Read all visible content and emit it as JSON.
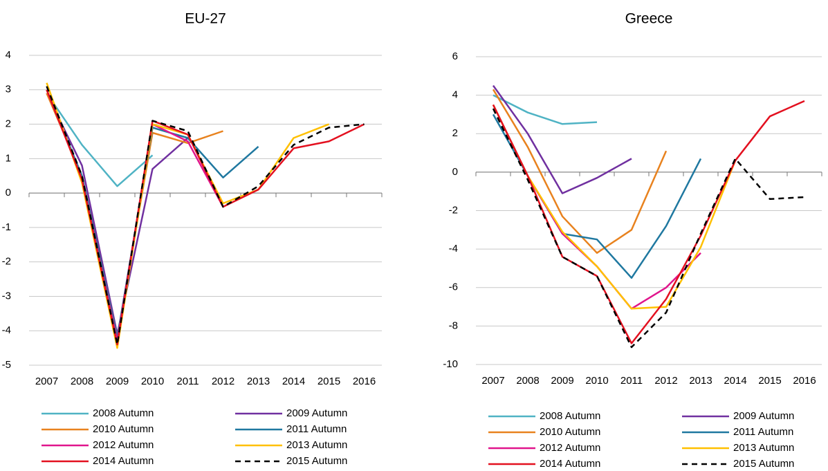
{
  "chart_data": [
    {
      "type": "line",
      "title": "EU-27",
      "categories": [
        "2007",
        "2008",
        "2009",
        "2010",
        "2011",
        "2012",
        "2013",
        "2014",
        "2015",
        "2016"
      ],
      "ylim": [
        -5,
        4
      ],
      "yticks": [
        -5,
        -4,
        -3,
        -2,
        -1,
        0,
        1,
        2,
        3,
        4
      ],
      "grid": true,
      "series": [
        {
          "name": "2008 Autumn",
          "color": "#4fb3c4",
          "values": [
            2.9,
            1.4,
            0.2,
            1.1,
            null,
            null,
            null,
            null,
            null,
            null
          ]
        },
        {
          "name": "2009 Autumn",
          "color": "#7030a0",
          "values": [
            2.9,
            0.8,
            -4.1,
            0.7,
            1.6,
            null,
            null,
            null,
            null,
            null
          ]
        },
        {
          "name": "2010 Autumn",
          "color": "#e8821e",
          "values": [
            2.9,
            0.5,
            -4.2,
            1.75,
            1.45,
            1.8,
            null,
            null,
            null,
            null
          ]
        },
        {
          "name": "2011 Autumn",
          "color": "#1f78a0",
          "values": [
            3.0,
            0.5,
            -4.2,
            1.9,
            1.6,
            0.45,
            1.35,
            null,
            null,
            null
          ]
        },
        {
          "name": "2012 Autumn",
          "color": "#e0158c",
          "values": [
            3.0,
            0.4,
            -4.3,
            2.0,
            1.5,
            -0.4,
            null,
            null,
            null,
            null
          ]
        },
        {
          "name": "2013 Autumn",
          "color": "#ffc000",
          "values": [
            3.2,
            0.3,
            -4.5,
            2.0,
            1.7,
            -0.3,
            0.1,
            1.6,
            2.0,
            null
          ]
        },
        {
          "name": "2014 Autumn",
          "color": "#e3101f",
          "values": [
            3.0,
            0.4,
            -4.4,
            2.1,
            1.7,
            -0.4,
            0.1,
            1.3,
            1.5,
            2.0
          ]
        },
        {
          "name": "2015 Autumn",
          "color": "#000000",
          "dashed": true,
          "values": [
            3.1,
            0.5,
            -4.4,
            2.1,
            1.8,
            -0.4,
            0.2,
            1.4,
            1.9,
            2.0
          ]
        }
      ]
    },
    {
      "type": "line",
      "title": "Greece",
      "categories": [
        "2007",
        "2008",
        "2009",
        "2010",
        "2011",
        "2012",
        "2013",
        "2014",
        "2015",
        "2016"
      ],
      "ylim": [
        -10,
        6
      ],
      "yticks": [
        -10,
        -8,
        -6,
        -4,
        -2,
        0,
        2,
        4,
        6
      ],
      "grid": true,
      "series": [
        {
          "name": "2008 Autumn",
          "color": "#4fb3c4",
          "values": [
            4.0,
            3.1,
            2.5,
            2.6,
            null,
            null,
            null,
            null,
            null,
            null
          ]
        },
        {
          "name": "2009 Autumn",
          "color": "#7030a0",
          "values": [
            4.5,
            2.0,
            -1.1,
            -0.3,
            0.7,
            null,
            null,
            null,
            null,
            null
          ]
        },
        {
          "name": "2010 Autumn",
          "color": "#e8821e",
          "values": [
            4.3,
            1.3,
            -2.3,
            -4.2,
            -3.0,
            1.1,
            null,
            null,
            null,
            null
          ]
        },
        {
          "name": "2011 Autumn",
          "color": "#1f78a0",
          "values": [
            3.0,
            -0.2,
            -3.2,
            -3.5,
            -5.5,
            -2.8,
            0.7,
            null,
            null,
            null
          ]
        },
        {
          "name": "2012 Autumn",
          "color": "#e0158c",
          "values": [
            3.5,
            -0.2,
            -3.2,
            -4.9,
            -7.1,
            -6.0,
            -4.2,
            null,
            null,
            null
          ]
        },
        {
          "name": "2013 Autumn",
          "color": "#ffc000",
          "values": [
            3.5,
            -0.2,
            -3.1,
            -4.9,
            -7.1,
            -7.0,
            -3.9,
            0.6,
            null,
            null
          ]
        },
        {
          "name": "2014 Autumn",
          "color": "#e3101f",
          "values": [
            3.5,
            -0.2,
            -4.4,
            -5.4,
            -8.9,
            -6.6,
            -3.3,
            0.6,
            2.9,
            3.7
          ]
        },
        {
          "name": "2015 Autumn",
          "color": "#000000",
          "dashed": true,
          "values": [
            3.3,
            -0.4,
            -4.4,
            -5.4,
            -9.1,
            -7.3,
            -3.2,
            0.7,
            -1.4,
            -1.3
          ]
        }
      ]
    }
  ]
}
